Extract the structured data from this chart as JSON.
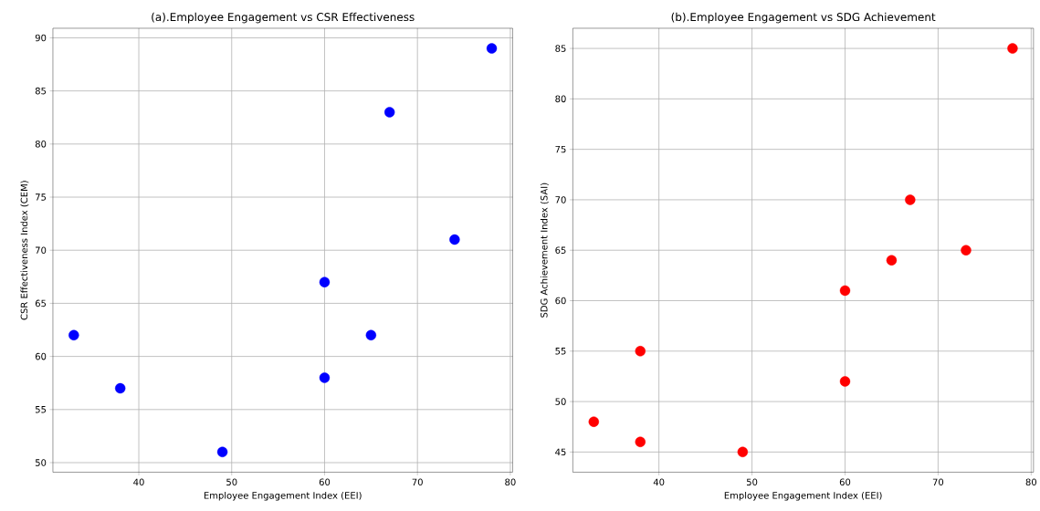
{
  "chart_data": [
    {
      "type": "scatter",
      "title": "(a).Employee Engagement vs CSR Effectiveness",
      "xlabel": "Employee Engagement Index (EEI)",
      "ylabel": "CSR Effectiveness Index (CEM)",
      "x": [
        33,
        38,
        49,
        60,
        60,
        65,
        67,
        74,
        78
      ],
      "series": [
        {
          "color": "#0000ff",
          "values": [
            62,
            57,
            51,
            67,
            58,
            62,
            83,
            71,
            89
          ]
        }
      ],
      "xlim": [
        30.75,
        80.25
      ],
      "ylim": [
        49.1,
        90.9
      ],
      "xticks": [
        40,
        50,
        60,
        70,
        80
      ],
      "yticks": [
        50,
        55,
        60,
        65,
        70,
        75,
        80,
        85,
        90
      ],
      "grid": true,
      "marker": "circle"
    },
    {
      "type": "scatter",
      "title": "(b).Employee Engagement vs SDG Achievement",
      "xlabel": "Employee Engagement Index (EEI)",
      "ylabel": "SDG Achievement Index (SAI)",
      "x": [
        33,
        38,
        38,
        49,
        60,
        60,
        65,
        67,
        73,
        78
      ],
      "series": [
        {
          "color": "#ff0000",
          "values": [
            48,
            46,
            55,
            45,
            61,
            52,
            64,
            70,
            65,
            85
          ]
        }
      ],
      "xlim": [
        30.75,
        80.25
      ],
      "ylim": [
        43,
        87
      ],
      "xticks": [
        40,
        50,
        60,
        70,
        80
      ],
      "yticks": [
        45,
        50,
        55,
        60,
        65,
        70,
        75,
        80,
        85
      ],
      "grid": true,
      "marker": "circle"
    }
  ]
}
